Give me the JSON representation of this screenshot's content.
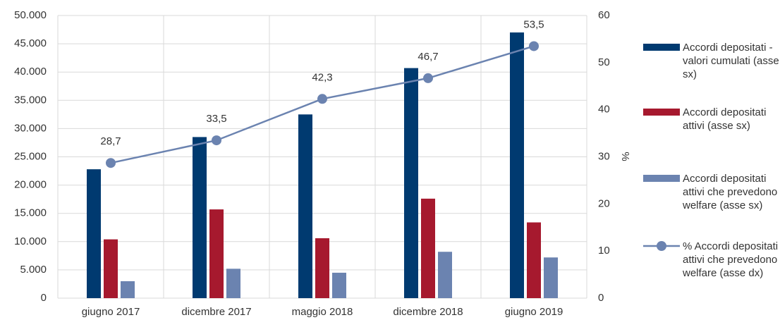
{
  "chart_data": {
    "type": "bar-line",
    "categories": [
      "giugno 2017",
      "dicembre 2017",
      "maggio 2018",
      "dicembre 2018",
      "giugno 2019"
    ],
    "series": [
      {
        "name": "Accordi depositati - valori cumulati (asse sx)",
        "type": "bar",
        "color": "#003a70",
        "values": [
          22800,
          28500,
          32500,
          40700,
          47000
        ]
      },
      {
        "name": "Accordi depositati attivi (asse sx)",
        "type": "bar",
        "color": "#a6192e",
        "values": [
          10400,
          15700,
          10600,
          17600,
          13400
        ]
      },
      {
        "name": "Accordi depositati attivi che prevedono welfare (asse sx)",
        "type": "bar",
        "color": "#6b83b0",
        "values": [
          3000,
          5200,
          4500,
          8200,
          7200
        ]
      },
      {
        "name": "% Accordi depositati attivi che prevedono welfare (asse dx)",
        "type": "line",
        "axis": "y2",
        "color": "#6b83b0",
        "values": [
          28.7,
          33.5,
          42.3,
          46.7,
          53.5
        ],
        "value_labels": [
          "28,7",
          "33,5",
          "42,3",
          "46,7",
          "53,5"
        ]
      }
    ],
    "ylim": [
      0,
      50000
    ],
    "yticks": [
      0,
      {
        "value": 5000,
        "label": "5.000"
      },
      {
        "value": 10000,
        "label": "10.000"
      },
      {
        "value": 15000,
        "label": "15.000"
      },
      {
        "value": 20000,
        "label": "20.000"
      },
      {
        "value": 25000,
        "label": "25.000"
      },
      {
        "value": 30000,
        "label": "30.000"
      },
      {
        "value": 35000,
        "label": "35.000"
      },
      {
        "value": 40000,
        "label": "40.000"
      },
      {
        "value": 45000,
        "label": "45.000"
      },
      {
        "value": 50000,
        "label": "50.000"
      }
    ],
    "y2lim": [
      0,
      60
    ],
    "y2ticks": [
      0,
      10,
      20,
      30,
      40,
      50,
      60
    ],
    "y2label": "%",
    "grid": true,
    "legend": "right"
  }
}
